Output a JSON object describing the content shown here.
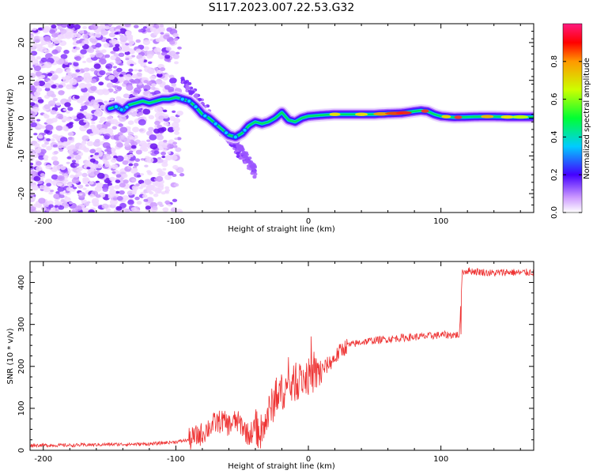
{
  "title": "S117.2023.007.22.53.G32",
  "chart_data": [
    {
      "type": "heatmap",
      "xlabel": "Height of straight line (km)",
      "ylabel": "Frequency (Hz)",
      "xlim": [
        -210,
        170
      ],
      "ylim": [
        -25,
        25
      ],
      "xticks": [
        -200,
        -100,
        0,
        100
      ],
      "yticks": [
        -20,
        -10,
        0,
        10,
        20
      ],
      "colorbar": {
        "label": "Normalized spectral amplitude",
        "range": [
          0,
          1
        ],
        "ticks": [
          "0.0",
          "0.2",
          "0.4",
          "0.6",
          "0.8"
        ]
      },
      "ridge": {
        "x": [
          -150,
          -145,
          -140,
          -135,
          -130,
          -125,
          -120,
          -115,
          -110,
          -105,
          -100,
          -95,
          -90,
          -85,
          -80,
          -75,
          -70,
          -65,
          -60,
          -55,
          -50,
          -45,
          -40,
          -35,
          -30,
          -25,
          -20,
          -15,
          -10,
          -5,
          0,
          10,
          20,
          30,
          40,
          50,
          60,
          70,
          80,
          85,
          90,
          95,
          100,
          110,
          120,
          130,
          140,
          150,
          160,
          170
        ],
        "y": [
          2.5,
          3,
          2,
          3.5,
          4,
          4.5,
          4,
          4.5,
          5,
          5,
          5.5,
          5,
          4.5,
          3,
          1,
          0,
          -1.5,
          -3,
          -4.5,
          -5,
          -4,
          -2,
          -1,
          -1.5,
          -1,
          0,
          1.5,
          -0.5,
          -1,
          0,
          0.5,
          0.8,
          1,
          1,
          1,
          1,
          1.2,
          1.3,
          1.8,
          2,
          1.8,
          1,
          0.5,
          0.2,
          0.3,
          0.4,
          0.4,
          0.3,
          0.3,
          0.3
        ]
      }
    },
    {
      "type": "line",
      "xlabel": "Height of straight line (km)",
      "ylabel": "SNR (10 * v/v)",
      "xlim": [
        -210,
        170
      ],
      "ylim": [
        0,
        450
      ],
      "xticks": [
        -200,
        -100,
        0,
        100
      ],
      "yticks": [
        0,
        100,
        200,
        300,
        400
      ],
      "color": "#ee3333",
      "series": [
        {
          "x": [
            -210,
            -180,
            -150,
            -120,
            -100,
            -90,
            -80,
            -75,
            -70,
            -65,
            -60,
            -55,
            -50,
            -45,
            -40,
            -35,
            -30,
            -25,
            -20,
            -15,
            -10,
            -5,
            0,
            5,
            10,
            15,
            20,
            25,
            30,
            40,
            50,
            60,
            70,
            80,
            90,
            100,
            110,
            114,
            116,
            120,
            130,
            140,
            150,
            160,
            170
          ],
          "y": [
            12,
            12,
            14,
            15,
            20,
            25,
            40,
            55,
            65,
            70,
            60,
            70,
            60,
            35,
            55,
            40,
            90,
            120,
            140,
            150,
            160,
            170,
            175,
            180,
            190,
            205,
            220,
            240,
            250,
            258,
            262,
            265,
            268,
            270,
            272,
            275,
            275,
            275,
            425,
            428,
            425,
            422,
            425,
            423,
            425
          ]
        }
      ]
    }
  ]
}
